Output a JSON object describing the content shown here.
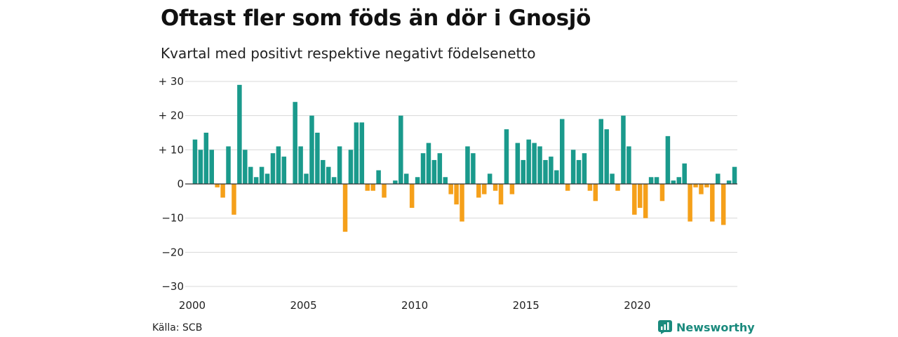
{
  "title": "Oftast fler som föds än dör i Gnosjö",
  "subtitle": "Kvartal med positivt respektive negativt födelsenetto",
  "source": "Källa: SCB",
  "brand": "Newsworthy",
  "colors": {
    "positive": "#1a9a8c",
    "negative": "#f5a01a",
    "grid": "#d8d8d8",
    "brand": "#1a8a7d"
  },
  "chart_data": {
    "type": "bar",
    "title": "Oftast fler som föds än dör i Gnosjö",
    "subtitle": "Kvartal med positivt respektive negativt födelsenetto",
    "xlabel": "",
    "ylabel": "",
    "x_start_year": 2000,
    "x_ticks": [
      "2000",
      "2005",
      "2010",
      "2015",
      "2020"
    ],
    "y_ticks": [
      {
        "value": 30,
        "label": "+ 30"
      },
      {
        "value": 20,
        "label": "+ 20"
      },
      {
        "value": 10,
        "label": "+ 10"
      },
      {
        "value": 0,
        "label": "0"
      },
      {
        "value": -10,
        "label": "−10"
      },
      {
        "value": -20,
        "label": "−20"
      },
      {
        "value": -30,
        "label": "−30"
      }
    ],
    "ylim": [
      -30,
      30
    ],
    "grid": true,
    "legend": "none",
    "values": [
      13,
      10,
      15,
      10,
      -1,
      -4,
      11,
      -9,
      29,
      10,
      5,
      2,
      5,
      3,
      9,
      11,
      8,
      0,
      24,
      11,
      3,
      20,
      15,
      7,
      5,
      2,
      11,
      -14,
      10,
      18,
      18,
      -2,
      -2,
      4,
      -4,
      0,
      1,
      20,
      3,
      -7,
      2,
      9,
      12,
      7,
      9,
      2,
      -3,
      -6,
      -11,
      11,
      9,
      -4,
      -3,
      3,
      -2,
      -6,
      16,
      -3,
      12,
      7,
      13,
      12,
      11,
      7,
      8,
      4,
      19,
      -2,
      10,
      7,
      9,
      -2,
      -5,
      19,
      16,
      3,
      -2,
      20,
      11,
      -9,
      -7,
      -10,
      2,
      2,
      -5,
      14,
      1,
      2,
      6,
      -11,
      -1,
      -3,
      -1,
      -11,
      3,
      -12,
      1,
      5
    ]
  }
}
